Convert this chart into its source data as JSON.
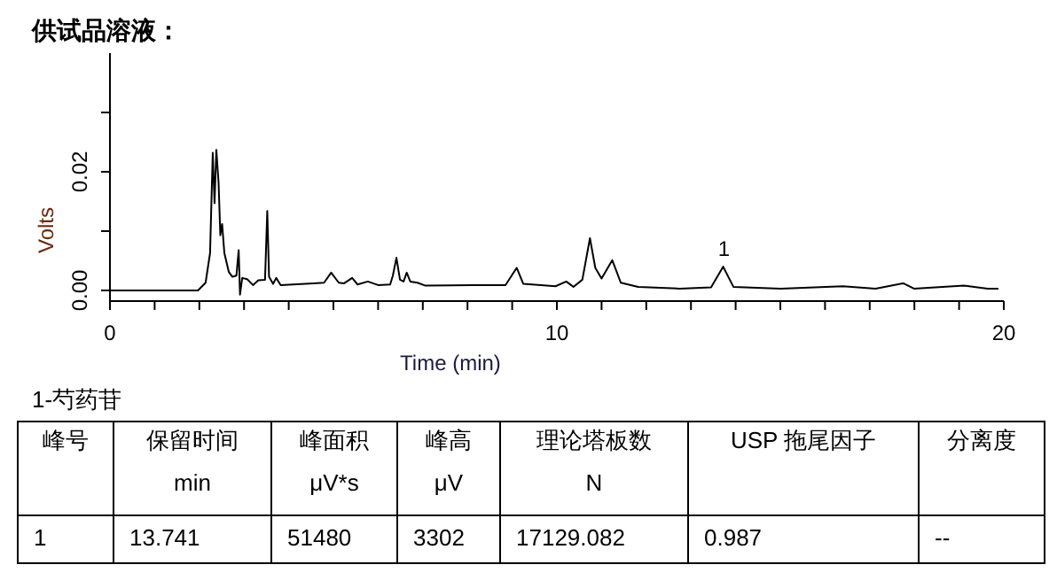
{
  "chart_data": [
    {
      "type": "line",
      "title": "供试品溶液：",
      "xlabel": "Time (min)",
      "ylabel": "Volts",
      "color": "#000000",
      "x": [
        0,
        1.97,
        2.14,
        2.24,
        2.3,
        2.34,
        2.38,
        2.43,
        2.47,
        2.51,
        2.56,
        2.66,
        2.74,
        2.83,
        2.88,
        2.91,
        2.96,
        3.07,
        3.2,
        3.32,
        3.47,
        3.52,
        3.56,
        3.65,
        3.72,
        3.82,
        4.55,
        4.79,
        4.95,
        5.12,
        5.24,
        5.42,
        5.54,
        5.77,
        6.0,
        6.27,
        6.33,
        6.41,
        6.49,
        6.57,
        6.64,
        6.72,
        6.88,
        7.06,
        8.12,
        8.85,
        9.1,
        9.25,
        9.97,
        10.21,
        10.37,
        10.57,
        10.74,
        10.86,
        11.0,
        11.24,
        11.43,
        11.82,
        12.75,
        13.45,
        13.72,
        13.95,
        15.01,
        16.4,
        17.13,
        17.75,
        17.99,
        19.11,
        19.64,
        19.88
      ],
      "values": [
        0,
        0,
        0.0013,
        0.0063,
        0.0232,
        0.0147,
        0.0237,
        0.0182,
        0.0093,
        0.0112,
        0.0063,
        0.0031,
        0.0023,
        0.0025,
        0.0068,
        -0.0007,
        0.0021,
        0.0019,
        0.0009,
        0.0017,
        0.0018,
        0.0134,
        0.0023,
        0.0011,
        0.0021,
        0.0009,
        0.0012,
        0.0013,
        0.003,
        0.0013,
        0.0012,
        0.0021,
        0.001,
        0.0015,
        0.0009,
        0.001,
        0.0025,
        0.0055,
        0.0018,
        0.0015,
        0.003,
        0.0015,
        0.0013,
        0.0008,
        0.0009,
        0.0009,
        0.0038,
        0.0011,
        0.0007,
        0.0015,
        0.0006,
        0.0018,
        0.0088,
        0.0038,
        0.002,
        0.0051,
        0.0013,
        0.0006,
        0.0003,
        0.0005,
        0.004,
        0.0006,
        0.0003,
        0.0007,
        0.0003,
        0.0012,
        0.0003,
        0.0008,
        0.0003,
        0.0003
      ],
      "xlim": [
        0,
        20
      ],
      "ylim": [
        -0.0018,
        0.04
      ],
      "xticks": [
        0,
        {
          "value": 1,
          "label": null
        },
        {
          "value": 2,
          "label": null
        },
        {
          "value": 3,
          "label": null
        },
        {
          "value": 4,
          "label": null
        },
        {
          "value": 5,
          "label": null
        },
        {
          "value": 6,
          "label": null
        },
        {
          "value": 7,
          "label": null
        },
        {
          "value": 8,
          "label": null
        },
        {
          "value": 9,
          "label": null
        },
        10,
        {
          "value": 11,
          "label": null
        },
        {
          "value": 12,
          "label": null
        },
        {
          "value": 13,
          "label": null
        },
        {
          "value": 14,
          "label": null
        },
        {
          "value": 15,
          "label": null
        },
        {
          "value": 16,
          "label": null
        },
        {
          "value": 17,
          "label": null
        },
        {
          "value": 18,
          "label": null
        },
        {
          "value": 19,
          "label": null
        },
        20
      ],
      "yticks": [
        {
          "value": 0,
          "label": "0.00"
        },
        {
          "value": 0.01,
          "label": null
        },
        {
          "value": 0.02,
          "label": "0.02"
        },
        {
          "value": 0.03,
          "label": null
        }
      ],
      "annotations": [
        {
          "text": "1",
          "x": 13.741,
          "y": 0.004
        }
      ]
    },
    {
      "type": "other",
      "title": "1-芍药苷",
      "annotations": [
        "峰号",
        "保留时间",
        "峰面积",
        "峰高",
        "理论塔板数",
        "USP 拖尾因子",
        "分离度",
        "min",
        "μV*s",
        "μV",
        "N",
        "1",
        "13.741",
        "51480",
        "3302",
        "17129.082",
        "0.987",
        "--"
      ]
    }
  ]
}
